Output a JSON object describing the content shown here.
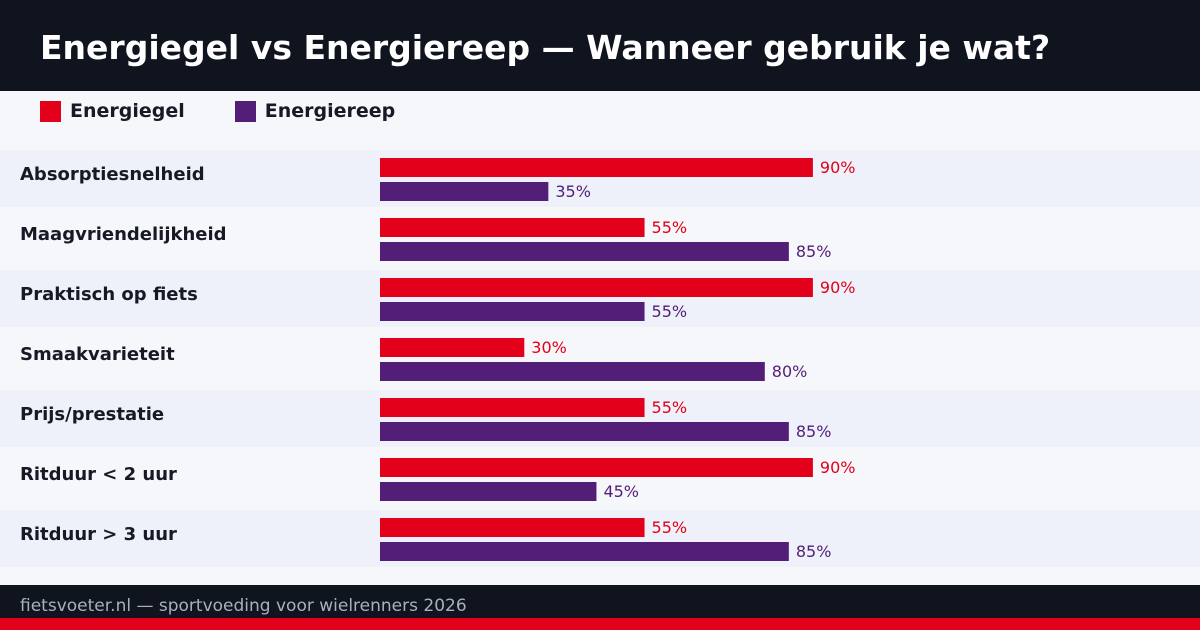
{
  "title": "Energiegel vs Energiereep — Wanneer gebruik je wat?",
  "footer": "fietsvoeter.nl — sportvoeding voor wielrenners 2026",
  "chart_data": {
    "type": "bar",
    "orientation": "horizontal",
    "categories": [
      "Absorptiesnelheid",
      "Maagvriendelijkheid",
      "Praktisch op fiets",
      "Smaakvarieteit",
      "Prijs/prestatie",
      "Ritduur < 2 uur",
      "Ritduur > 3 uur"
    ],
    "series": [
      {
        "name": "Energiegel",
        "color": "#e2001a",
        "values": [
          90,
          55,
          90,
          30,
          55,
          90,
          55
        ]
      },
      {
        "name": "Energiereep",
        "color": "#521e78",
        "values": [
          35,
          85,
          55,
          80,
          85,
          45,
          85
        ]
      }
    ],
    "value_suffix": "%",
    "xlim": [
      0,
      100
    ],
    "grid": false,
    "legend": "top-left"
  }
}
